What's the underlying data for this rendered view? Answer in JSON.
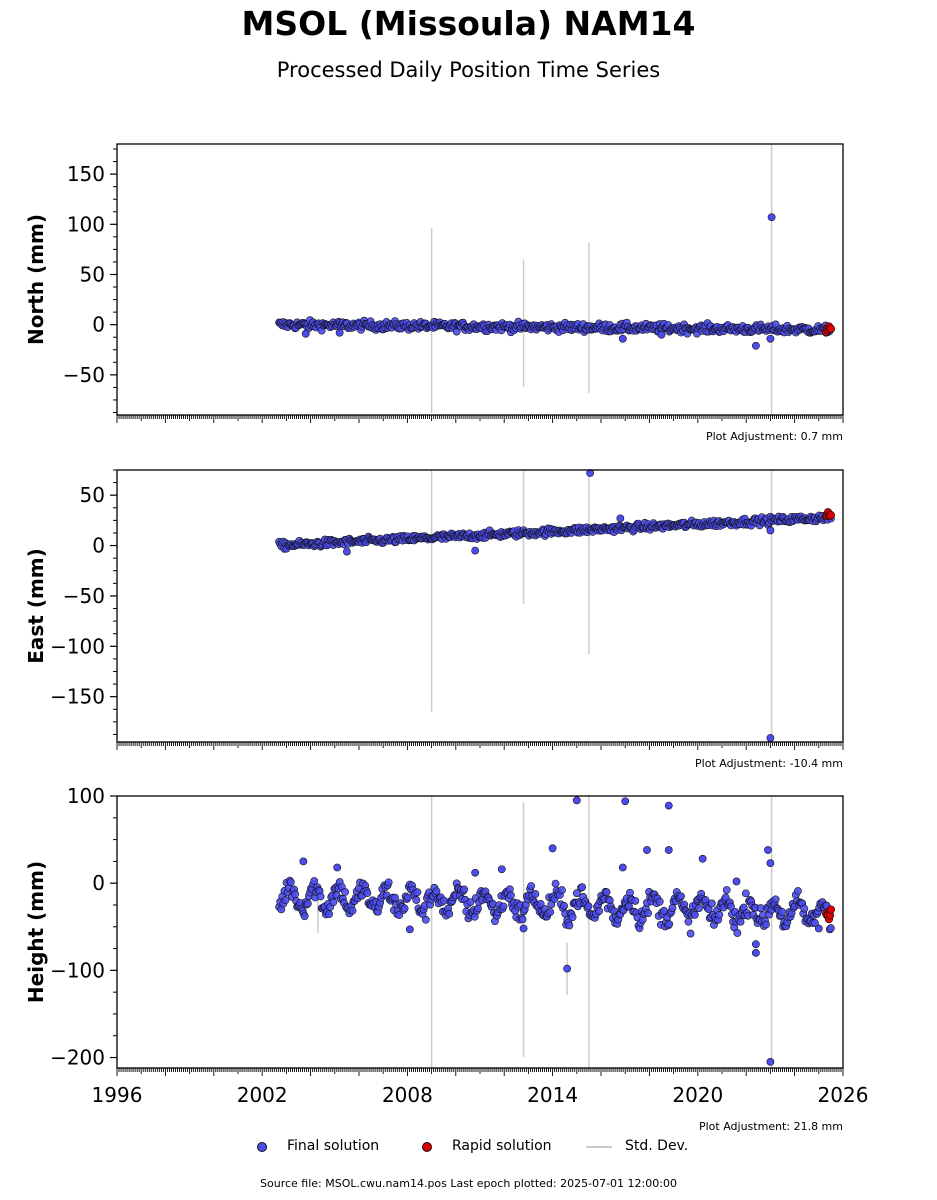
{
  "title": "MSOL (Missoula) NAM14",
  "subtitle": "Processed Daily Position Time Series",
  "footer": "Source file: MSOL.cwu.nam14.pos  Last epoch plotted: 2025-07-01 12:00:00",
  "legend": {
    "final": "Final solution",
    "rapid": "Rapid solution",
    "std": "Std. Dev."
  },
  "colors": {
    "final": "#4b4bf0",
    "rapid": "#e00000",
    "std": "#cccccc",
    "edge": "#111111"
  },
  "chart_data": [
    {
      "type": "scatter",
      "ylabel": "North (mm)",
      "adjustment": "Plot Adjustment: 0.7 mm",
      "xlim": [
        1996,
        2026
      ],
      "ylim": [
        -90,
        180
      ],
      "yticks": [
        -50,
        0,
        50,
        100,
        150
      ],
      "trend": {
        "start": [
          2002.7,
          0
        ],
        "end": [
          2025.5,
          -5
        ]
      },
      "noise": 3,
      "outliers": [
        [
          2023.05,
          107
        ],
        [
          2022.4,
          -21
        ],
        [
          2023.0,
          -14
        ],
        [
          2016.9,
          -14
        ],
        [
          2003.8,
          -9
        ],
        [
          2005.2,
          -8
        ],
        [
          2018.5,
          -10
        ],
        [
          2025.3,
          -8
        ]
      ],
      "std_bars": [
        [
          2009.0,
          -88,
          96
        ],
        [
          2012.8,
          -62,
          65
        ],
        [
          2015.5,
          -68,
          82
        ],
        [
          2023.05,
          -90,
          180
        ]
      ],
      "rapid": {
        "start": 2025.3,
        "end": 2025.5,
        "value": -4
      }
    },
    {
      "type": "scatter",
      "ylabel": "East (mm)",
      "adjustment": "Plot Adjustment: -10.4 mm",
      "xlim": [
        1996,
        2026
      ],
      "ylim": [
        -195,
        75
      ],
      "yticks": [
        -150,
        -100,
        -50,
        0,
        50
      ],
      "trend": {
        "start": [
          2002.7,
          0
        ],
        "end": [
          2025.5,
          28
        ]
      },
      "noise": 2.5,
      "outliers": [
        [
          2015.55,
          72
        ],
        [
          2023.0,
          -191
        ],
        [
          2023.0,
          15
        ],
        [
          2010.8,
          -5
        ],
        [
          2005.5,
          -6
        ],
        [
          2016.8,
          27
        ]
      ],
      "std_bars": [
        [
          2009.0,
          -165,
          75
        ],
        [
          2012.8,
          -58,
          75
        ],
        [
          2015.5,
          -108,
          75
        ],
        [
          2023.05,
          -195,
          75
        ]
      ],
      "rapid": {
        "start": 2025.3,
        "end": 2025.5,
        "value": 30
      }
    },
    {
      "type": "scatter",
      "ylabel": "Height (mm)",
      "adjustment": "Plot Adjustment: 21.8 mm",
      "xlim": [
        1996,
        2026
      ],
      "ylim": [
        -212,
        100
      ],
      "yticks": [
        -200,
        -100,
        0,
        100
      ],
      "xticks": [
        1996,
        2002,
        2008,
        2014,
        2020,
        2026
      ],
      "trend": {
        "start": [
          2002.7,
          -15
        ],
        "end": [
          2025.5,
          -35
        ]
      },
      "noise": 9,
      "seasonal": 12,
      "outliers": [
        [
          2015.0,
          95
        ],
        [
          2017.0,
          94
        ],
        [
          2018.8,
          89
        ],
        [
          2014.0,
          40
        ],
        [
          2017.9,
          38
        ],
        [
          2018.8,
          38
        ],
        [
          2022.9,
          38
        ],
        [
          2023.0,
          23
        ],
        [
          2014.6,
          -98
        ],
        [
          2023.0,
          -205
        ],
        [
          2012.8,
          -52
        ],
        [
          2008.1,
          -53
        ],
        [
          2022.4,
          -70
        ],
        [
          2022.4,
          -80
        ],
        [
          2020.2,
          28
        ],
        [
          2016.9,
          18
        ],
        [
          2010.8,
          12
        ],
        [
          2011.9,
          16
        ],
        [
          2005.1,
          18
        ],
        [
          2003.7,
          25
        ],
        [
          2025.0,
          -52
        ],
        [
          2021.6,
          2
        ]
      ],
      "std_bars": [
        [
          2009.0,
          -212,
          100
        ],
        [
          2012.8,
          -200,
          93
        ],
        [
          2015.5,
          -212,
          100
        ],
        [
          2023.05,
          -212,
          100
        ],
        [
          2014.6,
          -128,
          -68
        ],
        [
          2004.3,
          -57,
          -20
        ]
      ],
      "rapid": {
        "start": 2025.3,
        "end": 2025.5,
        "value": -35
      }
    }
  ]
}
